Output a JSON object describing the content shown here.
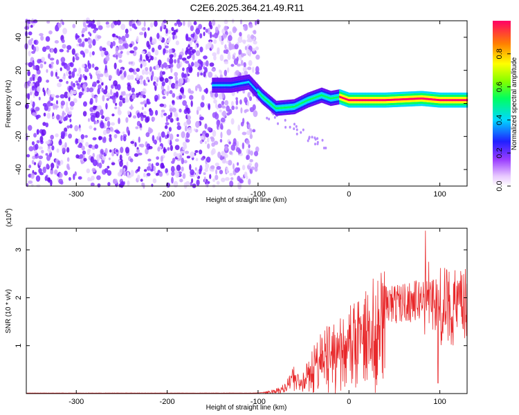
{
  "title": "C2E6.2025.364.21.49.R11",
  "colors": {
    "spectro_base": "#7a28ff",
    "snr_line": "#e8282a",
    "axis": "#000000"
  },
  "chart_data": [
    {
      "type": "heatmap",
      "name": "spectrogram",
      "xlabel": "Height of straight line (km)",
      "ylabel": "Frequency (Hz)",
      "xlim": [
        -355,
        130
      ],
      "ylim": [
        -50,
        50
      ],
      "x_ticks": [
        -300,
        -200,
        -100,
        0,
        100
      ],
      "y_ticks": [
        -40,
        -20,
        0,
        20,
        40
      ],
      "x_tick_labels": [
        "-300",
        "-200",
        "-100",
        "0",
        "100"
      ],
      "y_tick_labels": [
        "-40",
        "-20",
        "0",
        "20",
        "40"
      ],
      "noise_region_km": [
        -355,
        -100
      ],
      "signal_band": [
        {
          "x": -150,
          "f": 11
        },
        {
          "x": -130,
          "f": 11
        },
        {
          "x": -110,
          "f": 13
        },
        {
          "x": -95,
          "f": 4
        },
        {
          "x": -80,
          "f": -3
        },
        {
          "x": -60,
          "f": -2
        },
        {
          "x": -45,
          "f": 2
        },
        {
          "x": -30,
          "f": 5
        },
        {
          "x": -20,
          "f": 3
        },
        {
          "x": -10,
          "f": 4
        },
        {
          "x": 0,
          "f": 2
        },
        {
          "x": 40,
          "f": 2
        },
        {
          "x": 80,
          "f": 3
        },
        {
          "x": 100,
          "f": 2
        },
        {
          "x": 130,
          "f": 2
        }
      ],
      "colorbar": {
        "label": "Normalized spectral amplitude",
        "range": [
          0,
          1
        ],
        "ticks": [
          0.0,
          0.2,
          0.4,
          0.6,
          0.8
        ],
        "tick_labels": [
          "0.0",
          "0.2",
          "0.4",
          "0.6",
          "0.8"
        ]
      }
    },
    {
      "type": "line",
      "name": "snr",
      "xlabel": "Height of straight line (km)",
      "ylabel": "SNR (10 * v/v)",
      "scale_label": "(x10",
      "scale_exp": "4",
      "scale_close": ")",
      "xlim": [
        -355,
        130
      ],
      "ylim": [
        0,
        3.45
      ],
      "x_ticks": [
        -300,
        -200,
        -100,
        0,
        100
      ],
      "y_ticks": [
        1,
        2,
        3
      ],
      "x_tick_labels": [
        "-300",
        "-200",
        "-100",
        "0",
        "100"
      ],
      "y_tick_labels": [
        "1",
        "2",
        "3"
      ],
      "envelope": [
        {
          "x": -355,
          "v": 0.01
        },
        {
          "x": -105,
          "v": 0.01
        },
        {
          "x": -95,
          "v": 0.02
        },
        {
          "x": -75,
          "v": 0.1
        },
        {
          "x": -60,
          "v": 0.4
        },
        {
          "x": -50,
          "v": 0.3
        },
        {
          "x": -40,
          "v": 0.7
        },
        {
          "x": -25,
          "v": 1.0
        },
        {
          "x": -10,
          "v": 1.1
        },
        {
          "x": 0,
          "v": 1.3
        },
        {
          "x": 15,
          "v": 1.55
        },
        {
          "x": 30,
          "v": 1.75
        },
        {
          "x": 40,
          "v": 1.85
        },
        {
          "x": 60,
          "v": 1.9
        },
        {
          "x": 80,
          "v": 1.95
        },
        {
          "x": 90,
          "v": 2.0
        },
        {
          "x": 100,
          "v": 1.82
        },
        {
          "x": 130,
          "v": 1.8
        }
      ],
      "spikes": [
        {
          "x": 84,
          "v": 3.4
        },
        {
          "x": 88,
          "v": 2.75
        },
        {
          "x": 95,
          "v": 2.3
        },
        {
          "x": 98,
          "v": 0.22
        }
      ]
    }
  ]
}
